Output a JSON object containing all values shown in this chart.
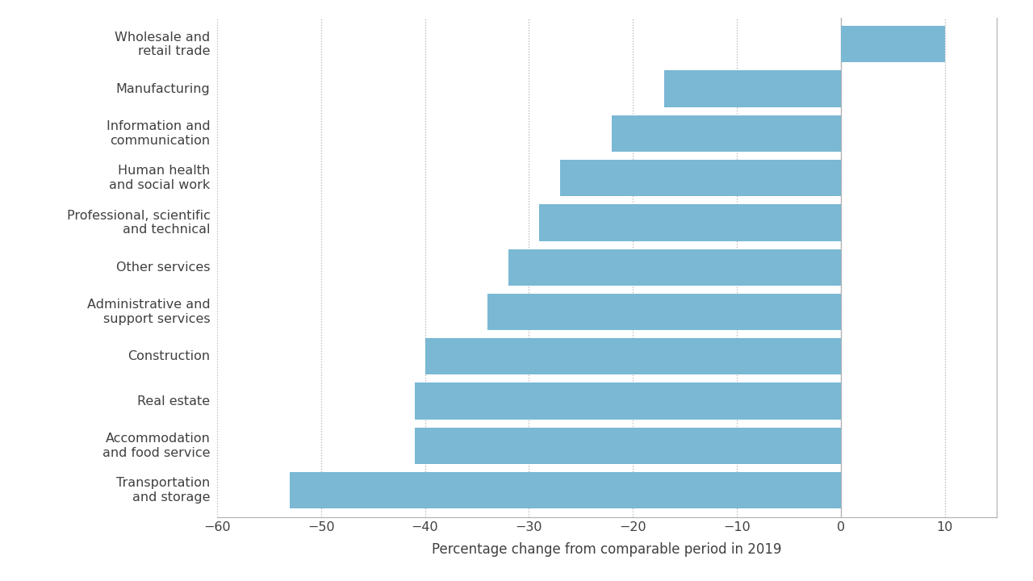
{
  "categories": [
    "Transportation\nand storage",
    "Accommodation\nand food service",
    "Real estate",
    "Construction",
    "Administrative and\nsupport services",
    "Other services",
    "Professional, scientific\nand technical",
    "Human health\nand social work",
    "Information and\ncommunication",
    "Manufacturing",
    "Wholesale and\nretail trade"
  ],
  "values": [
    -53,
    -41,
    -41,
    -40,
    -34,
    -32,
    -29,
    -27,
    -22,
    -17,
    10
  ],
  "bar_color": "#7ab8d4",
  "xlabel": "Percentage change from comparable period in 2019",
  "xlim": [
    -60,
    15
  ],
  "xticks": [
    -60,
    -50,
    -40,
    -30,
    -20,
    -10,
    0,
    10
  ],
  "background_color": "#ffffff",
  "grid_color": "#b0b0b0",
  "spine_color": "#b0b0b0",
  "text_color": "#404040",
  "bar_height": 0.82,
  "figsize": [
    12.8,
    7.2
  ],
  "dpi": 100,
  "label_fontsize": 11.5,
  "xlabel_fontsize": 12
}
